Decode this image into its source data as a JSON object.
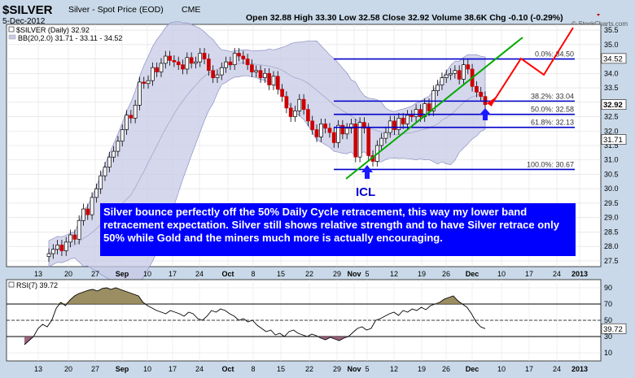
{
  "header": {
    "symbol": "$SILVER",
    "description": "Silver - Spot Price (EOD)",
    "exchange": "CME",
    "date": "5-Dec-2012",
    "ohlc": "Open 32.88  High 33.30  Low 32.58  Close 32.92  Volume 38.6K  Chg -0.10 (-0.29%)",
    "watermark": "© StockCharts.com"
  },
  "colors": {
    "background": "#c9d9e9",
    "panel": "#ffffff",
    "candle_up": "#ffffff",
    "candle_down": "#cc0000",
    "bollinger_fill": "#c7c9e6",
    "fib_lines": "#0000cc",
    "trendline": "#00aa00",
    "projection": "#ff0000",
    "annotation_box": "#0000ff",
    "annotation_text": "#ffffff",
    "rsi_shade": "#8a7a48"
  },
  "legend": {
    "main": "$SILVER (Daily) 32.92",
    "bb": "BB(20,2.0) 31.71 - 33.11 - 34.52",
    "rsi": "RSI(7) 39.72"
  },
  "annotation": {
    "text": "Silver bounce perfectly off the 50% Daily Cycle retracement, this way my lower band retracement expectation.  Silver still shows relative strength and to have Silver retrace only 50% while Gold and the miners much more is actually encouraging."
  },
  "icl_label": "ICL",
  "chart_data": [
    {
      "type": "candlestick",
      "title": "$SILVER (Daily) 32.92",
      "x_tick_labels": [
        "13",
        "20",
        "27",
        "Sep",
        "10",
        "17",
        "24",
        "Oct",
        "8",
        "15",
        "22",
        "29",
        "Nov",
        "5",
        "12",
        "19",
        "26",
        "Dec",
        "10",
        "17",
        "24",
        "2013"
      ],
      "y_ticks": [
        27.5,
        28.0,
        28.5,
        29.0,
        29.5,
        30.0,
        30.5,
        31.0,
        31.5,
        32.0,
        32.5,
        33.0,
        33.5,
        34.0,
        34.5,
        35.0,
        35.5
      ],
      "ylim": [
        27.3,
        35.7
      ],
      "price_labels": {
        "upper_band": "34.52",
        "last": "32.92",
        "lower_band": "31.71"
      },
      "closes": [
        27.75,
        27.9,
        28.05,
        27.85,
        28.15,
        28.4,
        28.25,
        28.9,
        29.3,
        29.1,
        29.7,
        30.0,
        30.45,
        30.75,
        31.1,
        31.3,
        31.65,
        32.05,
        32.55,
        32.45,
        32.9,
        33.7,
        33.65,
        33.75,
        34.2,
        34.05,
        34.35,
        34.6,
        34.45,
        34.4,
        34.3,
        34.15,
        34.55,
        34.35,
        34.4,
        34.7,
        34.5,
        34.1,
        33.85,
        33.95,
        34.2,
        34.4,
        34.3,
        34.7,
        34.6,
        34.5,
        34.3,
        34.05,
        34.1,
        33.85,
        34.0,
        33.6,
        33.9,
        33.45,
        33.2,
        32.8,
        32.5,
        32.7,
        33.1,
        32.75,
        32.35,
        32.05,
        31.8,
        32.25,
        32.1,
        31.95,
        31.6,
        32.2,
        31.9,
        32.1,
        32.25,
        31.1,
        32.3,
        32.1,
        31.15,
        30.95,
        31.5,
        31.75,
        31.95,
        32.35,
        32.05,
        32.45,
        32.25,
        32.55,
        32.5,
        32.75,
        32.5,
        32.95,
        32.7,
        33.4,
        33.6,
        33.85,
        33.95,
        34.0,
        34.1,
        33.8,
        34.3,
        34.15,
        33.55,
        33.35,
        33.2,
        32.92
      ],
      "fibonacci": [
        {
          "label": "0.0%: 34.50",
          "value": 34.5
        },
        {
          "label": "38.2%: 33.04",
          "value": 33.04
        },
        {
          "label": "50.0%: 32.58",
          "value": 32.58
        },
        {
          "label": "61.8%: 32.13",
          "value": 32.13
        },
        {
          "label": "100.0%: 30.67",
          "value": 30.67
        }
      ]
    },
    {
      "type": "line",
      "title": "RSI(7) 39.72",
      "y_ticks": [
        10,
        30,
        50,
        70,
        90
      ],
      "levels": [
        30,
        70
      ],
      "ylim": [
        0,
        100
      ],
      "last_label": "39.72",
      "values": [
        20,
        25,
        30,
        40,
        45,
        42,
        50,
        65,
        72,
        68,
        75,
        80,
        83,
        85,
        87,
        88,
        86,
        89,
        90,
        88,
        90,
        88,
        86,
        84,
        82,
        80,
        72,
        68,
        65,
        62,
        60,
        58,
        62,
        60,
        58,
        55,
        60,
        58,
        52,
        50,
        55,
        62,
        60,
        64,
        62,
        58,
        55,
        50,
        52,
        48,
        50,
        44,
        40,
        36,
        38,
        32,
        34,
        30,
        36,
        38,
        34,
        32,
        30,
        33,
        31,
        28,
        26,
        29,
        27,
        25,
        28,
        30,
        35,
        40,
        42,
        38,
        40,
        50,
        52,
        55,
        58,
        60,
        56,
        62,
        60,
        64,
        62,
        66,
        63,
        68,
        70,
        72,
        76,
        78,
        80,
        74,
        70,
        66,
        58,
        48,
        42,
        39.72
      ]
    }
  ]
}
